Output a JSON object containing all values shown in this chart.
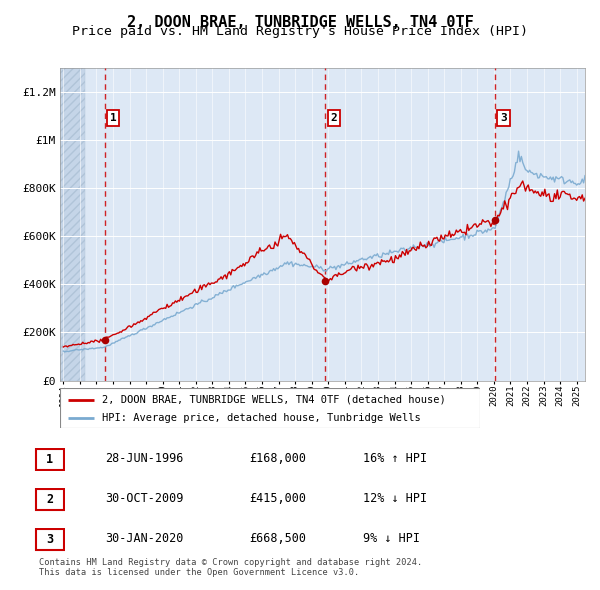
{
  "title": "2, DOON BRAE, TUNBRIDGE WELLS, TN4 0TF",
  "subtitle": "Price paid vs. HM Land Registry's House Price Index (HPI)",
  "title_fontsize": 11,
  "subtitle_fontsize": 9.5,
  "ylim": [
    0,
    1300000
  ],
  "yticks": [
    0,
    200000,
    400000,
    600000,
    800000,
    1000000,
    1200000
  ],
  "ytick_labels": [
    "£0",
    "£200K",
    "£400K",
    "£600K",
    "£800K",
    "£1M",
    "£1.2M"
  ],
  "background_color": "#ffffff",
  "plot_bg_color": "#dde8f5",
  "hatch_region_color": "#c5d5e8",
  "grid_color": "#ffffff",
  "red_line_color": "#cc0000",
  "blue_line_color": "#7aaad0",
  "vline_color": "#cc0000",
  "purchases": [
    {
      "num": 1,
      "date_x": 1996.49,
      "price": 168000,
      "label": "1"
    },
    {
      "num": 2,
      "date_x": 2009.83,
      "price": 415000,
      "label": "2"
    },
    {
      "num": 3,
      "date_x": 2020.08,
      "price": 668500,
      "label": "3"
    }
  ],
  "table_data": [
    {
      "num": "1",
      "date": "28-JUN-1996",
      "price": "£168,000",
      "hpi": "16% ↑ HPI"
    },
    {
      "num": "2",
      "date": "30-OCT-2009",
      "price": "£415,000",
      "hpi": "12% ↓ HPI"
    },
    {
      "num": "3",
      "date": "30-JAN-2020",
      "price": "£668,500",
      "hpi": "9% ↓ HPI"
    }
  ],
  "legend_entry1": "2, DOON BRAE, TUNBRIDGE WELLS, TN4 0TF (detached house)",
  "legend_entry2": "HPI: Average price, detached house, Tunbridge Wells",
  "footer": "Contains HM Land Registry data © Crown copyright and database right 2024.\nThis data is licensed under the Open Government Licence v3.0.",
  "xmin": 1993.8,
  "xmax": 2025.5,
  "hatch_xmax": 1995.3
}
